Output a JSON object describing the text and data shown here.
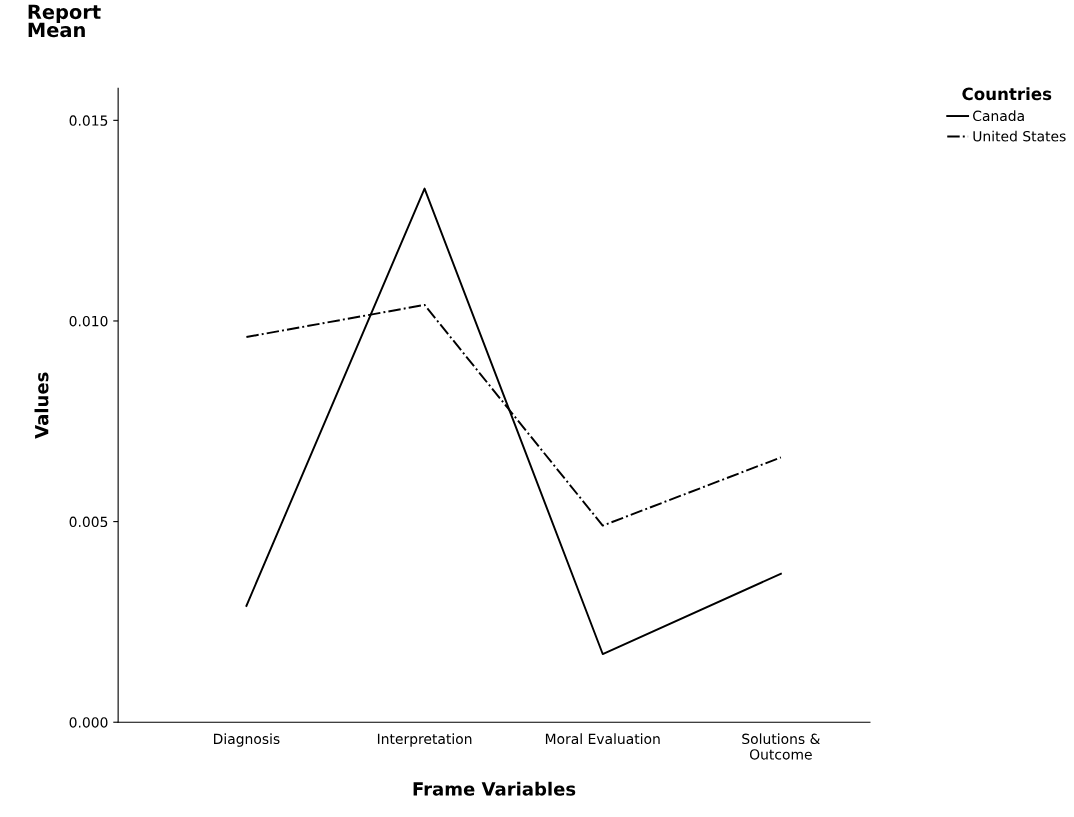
{
  "chart_data": {
    "type": "line",
    "title": "Report\nMean",
    "xlabel": "Frame Variables",
    "ylabel": "Values",
    "legend_title": "Countries",
    "categories": [
      "Diagnosis",
      "Interpretation",
      "Moral Evaluation",
      "Solutions &\nOutcome"
    ],
    "series": [
      {
        "name": "Canada",
        "color": "#000000",
        "line_style": "solid",
        "values": [
          0.0029,
          0.0133,
          0.0017,
          0.0037
        ]
      },
      {
        "name": "United States",
        "color": "#000000",
        "line_style": "dashdot",
        "values": [
          0.0096,
          0.0104,
          0.0049,
          0.0066
        ]
      }
    ],
    "ylim": [
      0,
      0.0158
    ],
    "yticks": [
      {
        "value": 0,
        "label": "0.000"
      },
      {
        "value": 0.005,
        "label": "0.005"
      },
      {
        "value": 0.01,
        "label": "0.010"
      },
      {
        "value": 0.015,
        "label": "0.015"
      }
    ],
    "grid": false,
    "legend": "top right",
    "marker": "none"
  }
}
